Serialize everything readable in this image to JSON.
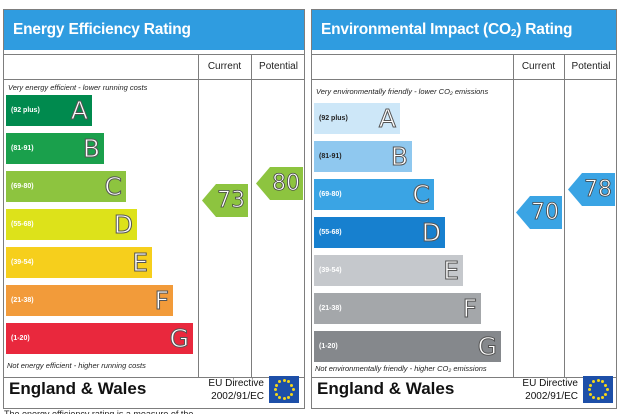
{
  "energy": {
    "title": "Energy Efficiency Rating",
    "col_current": "Current",
    "col_potential": "Potential",
    "top_note": "Very energy efficient - lower running costs",
    "bottom_note": "Not energy efficient - higher running costs",
    "bands": [
      {
        "range": "(92 plus)",
        "letter": "A",
        "color": "#008a4e"
      },
      {
        "range": "(81-91)",
        "letter": "B",
        "color": "#1aa04c"
      },
      {
        "range": "(69-80)",
        "letter": "C",
        "color": "#8dc43f"
      },
      {
        "range": "(55-68)",
        "letter": "D",
        "color": "#dde21a"
      },
      {
        "range": "(39-54)",
        "letter": "E",
        "color": "#f6cf1c"
      },
      {
        "range": "(21-38)",
        "letter": "F",
        "color": "#f29b3a"
      },
      {
        "range": "(1-20)",
        "letter": "G",
        "color": "#e9283d"
      }
    ],
    "current": "73",
    "potential": "80",
    "current_color": "#8dc43f",
    "potential_color": "#8dc43f",
    "country": "England & Wales",
    "directive_line1": "EU Directive",
    "directive_line2": "2002/91/EC"
  },
  "environment": {
    "title_main": "Environmental Impact (CO",
    "title_sub": "2",
    "title_end": ") Rating",
    "col_current": "Current",
    "col_potential": "Potential",
    "top_note": "Very environmentally friendly - lower CO₂ emissions",
    "bottom_note": "Not environmentally friendly - higher CO₂ emissions",
    "bands": [
      {
        "range": "(92 plus)",
        "letter": "A",
        "color": "#cde7f8"
      },
      {
        "range": "(81-91)",
        "letter": "B",
        "color": "#8fc8ef"
      },
      {
        "range": "(69-80)",
        "letter": "C",
        "color": "#3aa4e4"
      },
      {
        "range": "(55-68)",
        "letter": "D",
        "color": "#1780cf"
      },
      {
        "range": "(39-54)",
        "letter": "E",
        "color": "#c5c8cc"
      },
      {
        "range": "(21-38)",
        "letter": "F",
        "color": "#a4a7aa"
      },
      {
        "range": "(1-20)",
        "letter": "G",
        "color": "#85888c"
      }
    ],
    "current": "70",
    "potential": "78",
    "current_color": "#3aa4e4",
    "potential_color": "#3aa4e4",
    "country": "England & Wales",
    "directive_line1": "EU Directive",
    "directive_line2": "2002/91/EC"
  },
  "bottom_text": "The energy efficiency rating is a measure of the"
}
